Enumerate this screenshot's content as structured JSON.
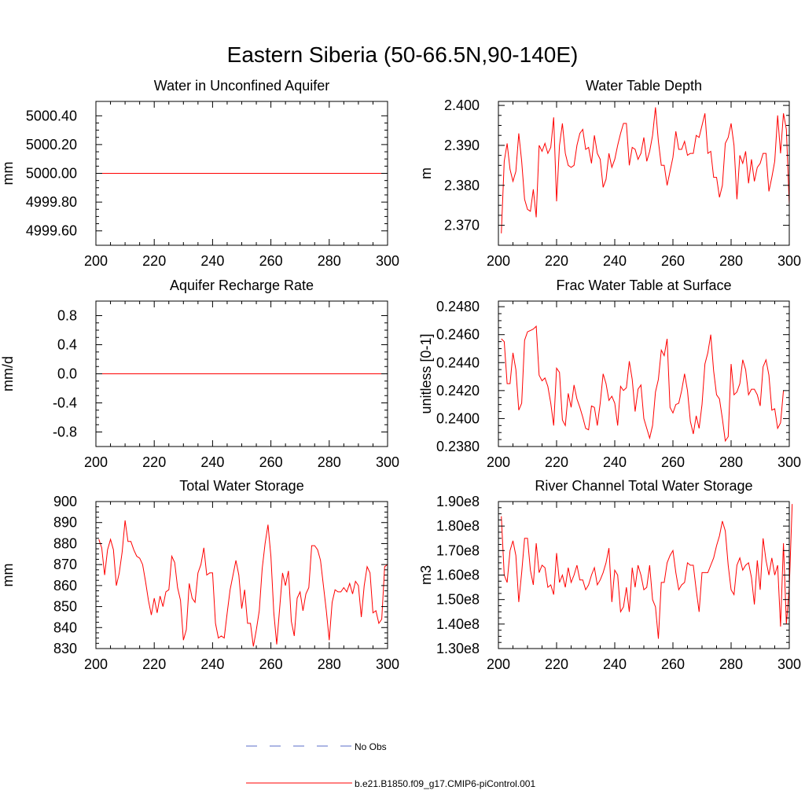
{
  "figure": {
    "title": "Eastern Siberia (50-66.5N,90-140E)"
  },
  "colors": {
    "series": "#ff0000",
    "obs": "#5a6cc8",
    "axis": "#000000",
    "background": "#ffffff"
  },
  "legend": {
    "entries": [
      {
        "label": "No Obs",
        "style": "dashed",
        "color": "#5a6cc8"
      },
      {
        "label": "b.e21.B1850.f09_g17.CMIP6-piControl.001",
        "style": "solid",
        "color": "#ff0000"
      }
    ]
  },
  "chart_data": [
    {
      "id": "water-in-unconfined-aquifer",
      "type": "line",
      "title": "Water in Unconfined Aquifer",
      "ylabel": "mm",
      "xlim": [
        200,
        300
      ],
      "ylim": [
        4999.5,
        5000.5
      ],
      "xticks": [
        200,
        220,
        240,
        260,
        280,
        300
      ],
      "yticks": [
        4999.6,
        4999.8,
        5000.0,
        5000.2,
        5000.4
      ],
      "ytick_labels": [
        "4999.60",
        "4999.80",
        "5000.00",
        "5000.20",
        "5000.40"
      ],
      "x_start": 201,
      "x_step": 1,
      "values": [
        5000,
        5000,
        5000,
        5000,
        5000,
        5000,
        5000,
        5000,
        5000,
        5000,
        5000,
        5000,
        5000,
        5000,
        5000,
        5000,
        5000,
        5000,
        5000,
        5000,
        5000,
        5000,
        5000,
        5000,
        5000,
        5000,
        5000,
        5000,
        5000,
        5000,
        5000,
        5000,
        5000,
        5000,
        5000,
        5000,
        5000,
        5000,
        5000,
        5000,
        5000,
        5000,
        5000,
        5000,
        5000,
        5000,
        5000,
        5000,
        5000,
        5000,
        5000,
        5000,
        5000,
        5000,
        5000,
        5000,
        5000,
        5000,
        5000,
        5000,
        5000,
        5000,
        5000,
        5000,
        5000,
        5000,
        5000,
        5000,
        5000,
        5000,
        5000,
        5000,
        5000,
        5000,
        5000,
        5000,
        5000,
        5000,
        5000,
        5000,
        5000,
        5000,
        5000,
        5000,
        5000,
        5000,
        5000,
        5000,
        5000,
        5000,
        5000,
        5000,
        5000,
        5000,
        5000,
        5000,
        5000,
        5000,
        5000,
        5000
      ]
    },
    {
      "id": "water-table-depth",
      "type": "line",
      "title": "Water Table Depth",
      "ylabel": "m",
      "xlim": [
        200,
        300
      ],
      "ylim": [
        2.365,
        2.401
      ],
      "xticks": [
        200,
        220,
        240,
        260,
        280,
        300
      ],
      "yticks": [
        2.37,
        2.38,
        2.39,
        2.4
      ],
      "ytick_labels": [
        "2.370",
        "2.380",
        "2.390",
        "2.400"
      ],
      "x_start": 201,
      "x_step": 1,
      "values": [
        2.368,
        2.386,
        2.3905,
        2.384,
        2.381,
        2.3835,
        2.393,
        2.386,
        2.3765,
        2.374,
        2.3735,
        2.379,
        2.372,
        2.39,
        2.3885,
        2.3905,
        2.388,
        2.3895,
        2.397,
        2.376,
        2.39,
        2.3955,
        2.388,
        2.385,
        2.3845,
        2.385,
        2.39,
        2.393,
        2.394,
        2.389,
        2.3895,
        2.3855,
        2.3925,
        2.388,
        2.3865,
        2.3795,
        2.3815,
        2.388,
        2.3845,
        2.3865,
        2.39,
        2.393,
        2.3955,
        2.3955,
        2.385,
        2.3895,
        2.389,
        2.3865,
        2.388,
        2.392,
        2.386,
        2.3885,
        2.3925,
        2.3995,
        2.391,
        2.385,
        2.385,
        2.38,
        2.3835,
        2.387,
        2.3935,
        2.389,
        2.389,
        2.391,
        2.3875,
        2.388,
        2.388,
        2.3925,
        2.392,
        2.395,
        2.398,
        2.388,
        2.3885,
        2.382,
        2.382,
        2.377,
        2.38,
        2.3905,
        2.392,
        2.3955,
        2.39,
        2.3765,
        2.3875,
        2.3855,
        2.3885,
        2.3805,
        2.3865,
        2.381,
        2.3845,
        2.3855,
        2.388,
        2.388,
        2.3785,
        2.382,
        2.386,
        2.3975,
        2.388,
        2.398,
        2.394,
        2.375
      ]
    },
    {
      "id": "aquifer-recharge-rate",
      "type": "line",
      "title": "Aquifer Recharge Rate",
      "ylabel": "mm/d",
      "xlim": [
        200,
        300
      ],
      "ylim": [
        -1.0,
        1.0
      ],
      "xticks": [
        200,
        220,
        240,
        260,
        280,
        300
      ],
      "yticks": [
        -0.8,
        -0.4,
        0.0,
        0.4,
        0.8
      ],
      "ytick_labels": [
        "-0.8",
        "-0.4",
        "0.0",
        "0.4",
        "0.8"
      ],
      "x_start": 201,
      "x_step": 1,
      "values": [
        0,
        0,
        0,
        0,
        0,
        0,
        0,
        0,
        0,
        0,
        0,
        0,
        0,
        0,
        0,
        0,
        0,
        0,
        0,
        0,
        0,
        0,
        0,
        0,
        0,
        0,
        0,
        0,
        0,
        0,
        0,
        0,
        0,
        0,
        0,
        0,
        0,
        0,
        0,
        0,
        0,
        0,
        0,
        0,
        0,
        0,
        0,
        0,
        0,
        0,
        0,
        0,
        0,
        0,
        0,
        0,
        0,
        0,
        0,
        0,
        0,
        0,
        0,
        0,
        0,
        0,
        0,
        0,
        0,
        0,
        0,
        0,
        0,
        0,
        0,
        0,
        0,
        0,
        0,
        0,
        0,
        0,
        0,
        0,
        0,
        0,
        0,
        0,
        0,
        0,
        0,
        0,
        0,
        0,
        0,
        0,
        0,
        0,
        0,
        0
      ]
    },
    {
      "id": "frac-water-table-at-surface",
      "type": "line",
      "title": "Frac Water Table at Surface",
      "ylabel": "unitless [0-1]",
      "xlim": [
        200,
        300
      ],
      "ylim": [
        0.238,
        0.2484
      ],
      "xticks": [
        200,
        220,
        240,
        260,
        280,
        300
      ],
      "yticks": [
        0.238,
        0.24,
        0.242,
        0.244,
        0.246,
        0.248
      ],
      "ytick_labels": [
        "0.2380",
        "0.2400",
        "0.2420",
        "0.2440",
        "0.2460",
        "0.2480"
      ],
      "x_start": 201,
      "x_step": 1,
      "values": [
        0.2457,
        0.2455,
        0.2425,
        0.2425,
        0.2447,
        0.2435,
        0.2406,
        0.2411,
        0.2456,
        0.2462,
        0.2463,
        0.2464,
        0.2466,
        0.2431,
        0.2427,
        0.2429,
        0.2423,
        0.2411,
        0.2395,
        0.2436,
        0.2433,
        0.2399,
        0.2395,
        0.2418,
        0.2408,
        0.2424,
        0.2414,
        0.2408,
        0.2401,
        0.2393,
        0.2392,
        0.2409,
        0.2408,
        0.2395,
        0.2411,
        0.2432,
        0.2425,
        0.2413,
        0.2416,
        0.2411,
        0.2395,
        0.2423,
        0.242,
        0.2422,
        0.2441,
        0.2428,
        0.2405,
        0.2421,
        0.2424,
        0.24,
        0.2393,
        0.2386,
        0.2395,
        0.2419,
        0.2428,
        0.2449,
        0.2445,
        0.2457,
        0.2408,
        0.2404,
        0.241,
        0.2411,
        0.242,
        0.2432,
        0.242,
        0.2398,
        0.2389,
        0.2402,
        0.2393,
        0.241,
        0.2439,
        0.2447,
        0.246,
        0.2434,
        0.2417,
        0.2414,
        0.24,
        0.2384,
        0.2387,
        0.2439,
        0.2417,
        0.2419,
        0.2425,
        0.2442,
        0.2435,
        0.2417,
        0.2421,
        0.2421,
        0.2417,
        0.2409,
        0.2437,
        0.2442,
        0.2431,
        0.2406,
        0.2407,
        0.2393,
        0.2397,
        0.242
      ]
    },
    {
      "id": "total-water-storage",
      "type": "line",
      "title": "Total Water Storage",
      "ylabel": "mm",
      "xlim": [
        200,
        300
      ],
      "ylim": [
        830,
        900
      ],
      "xticks": [
        200,
        220,
        240,
        260,
        280,
        300
      ],
      "yticks": [
        830,
        840,
        850,
        860,
        870,
        880,
        890,
        900
      ],
      "ytick_labels": [
        "830",
        "840",
        "850",
        "860",
        "870",
        "880",
        "890",
        "900"
      ],
      "x_start": 201,
      "x_step": 1,
      "values": [
        882,
        878,
        865,
        877,
        882,
        877,
        860,
        866,
        876,
        891,
        881,
        881,
        877,
        874,
        873,
        870,
        862,
        853,
        846,
        854,
        847,
        855,
        850,
        857,
        858,
        874,
        871,
        859,
        853,
        834,
        839,
        861,
        854,
        852,
        866,
        870,
        878,
        865,
        866,
        866,
        842,
        835,
        836,
        835,
        847,
        858,
        865,
        872,
        865,
        849,
        858,
        842,
        842,
        831,
        839,
        848,
        868,
        880,
        889,
        874,
        847,
        832,
        849,
        866,
        860,
        867,
        843,
        836,
        854,
        857,
        848,
        856,
        859,
        879,
        879,
        877,
        872,
        860,
        848,
        834,
        852,
        858,
        857,
        857,
        859,
        857,
        861,
        856,
        862,
        860,
        845,
        860,
        869,
        866,
        847,
        848,
        842,
        844,
        869,
        870
      ]
    },
    {
      "id": "river-channel-total-water-storage",
      "type": "line",
      "title": "River Channel Total Water Storage",
      "ylabel": "m3",
      "xlim": [
        200,
        300
      ],
      "ylim": [
        130000000,
        190000000
      ],
      "xticks": [
        200,
        220,
        240,
        260,
        280,
        300
      ],
      "yticks": [
        130000000,
        140000000,
        150000000,
        160000000,
        170000000,
        180000000,
        190000000
      ],
      "ytick_labels": [
        "1.30e8",
        "1.40e8",
        "1.50e8",
        "1.60e8",
        "1.70e8",
        "1.80e8",
        "1.90e8"
      ],
      "x_start": 201,
      "x_step": 1,
      "values": [
        184000000,
        160000000,
        157000000,
        170000000,
        174000000,
        168000000,
        149000000,
        161000000,
        175000000,
        175000000,
        162000000,
        156000000,
        173000000,
        161000000,
        164000000,
        163000000,
        155000000,
        156000000,
        152000000,
        169000000,
        157000000,
        160000000,
        155000000,
        163000000,
        157000000,
        160000000,
        164000000,
        158000000,
        158000000,
        154000000,
        156000000,
        160000000,
        163000000,
        156000000,
        158000000,
        161000000,
        165000000,
        171000000,
        149000000,
        162000000,
        160000000,
        145000000,
        147000000,
        155000000,
        145000000,
        163000000,
        155000000,
        164000000,
        160000000,
        154000000,
        155000000,
        164000000,
        150000000,
        147000000,
        134000000,
        157000000,
        157000000,
        165000000,
        168000000,
        170000000,
        161000000,
        154000000,
        156000000,
        157000000,
        165000000,
        164000000,
        164000000,
        154000000,
        145000000,
        161000000,
        161000000,
        161000000,
        164000000,
        167000000,
        172000000,
        176000000,
        182000000,
        178000000,
        164000000,
        154000000,
        152000000,
        164000000,
        167000000,
        162000000,
        164000000,
        165000000,
        159000000,
        148000000,
        166000000,
        154000000,
        175000000,
        166000000,
        160000000,
        167000000,
        160000000,
        164000000,
        139000000,
        173000000,
        140000000,
        155000000,
        189000000
      ]
    }
  ]
}
